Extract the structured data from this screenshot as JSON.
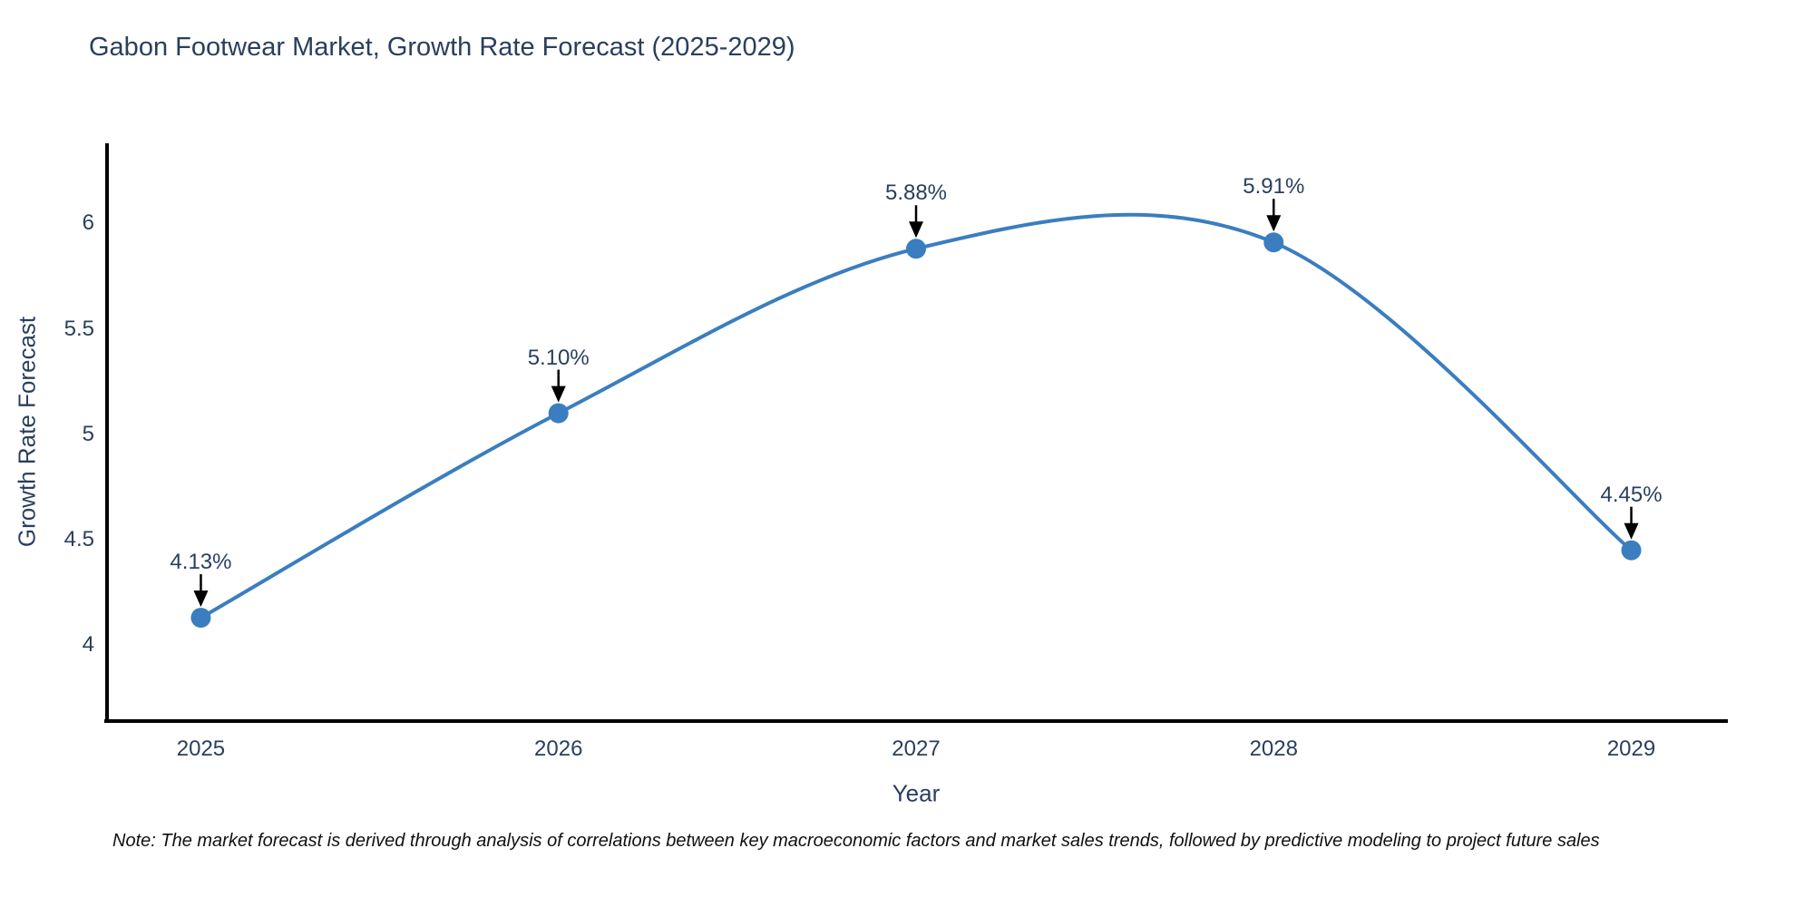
{
  "title": "Gabon Footwear Market, Growth Rate Forecast (2025-2029)",
  "note": "Note: The market forecast is derived through analysis of correlations between key macroeconomic factors and market sales trends, followed by predictive modeling to project future sales",
  "chart_data": {
    "type": "line",
    "title": "Gabon Footwear Market, Growth Rate Forecast (2025-2029)",
    "xlabel": "Year",
    "ylabel": "Growth Rate Forecast",
    "line_shape": "spline",
    "grid": false,
    "legend_position": "none",
    "x": [
      2025,
      2026,
      2027,
      2028,
      2029
    ],
    "values": [
      4.13,
      5.1,
      5.88,
      5.91,
      4.45
    ],
    "point_labels": [
      "4.13%",
      "5.10%",
      "5.88%",
      "5.91%",
      "4.45%"
    ],
    "x_tick_labels": [
      "2025",
      "2026",
      "2027",
      "2028",
      "2029"
    ],
    "y_tick_values": [
      4,
      4.5,
      5,
      5.5,
      6
    ],
    "y_tick_labels": [
      "4",
      "4.5",
      "5",
      "5.5",
      "6"
    ],
    "xlim": [
      2024.73,
      2029.27
    ],
    "ylim": [
      3.64,
      6.38
    ],
    "colors": {
      "line": "#3a7ebf",
      "marker": "#3a7ebf",
      "text": "#2a3f5f",
      "axis": "#000000",
      "annotation_arrow": "#000000",
      "note_text": "#111111",
      "background": "#ffffff"
    }
  }
}
